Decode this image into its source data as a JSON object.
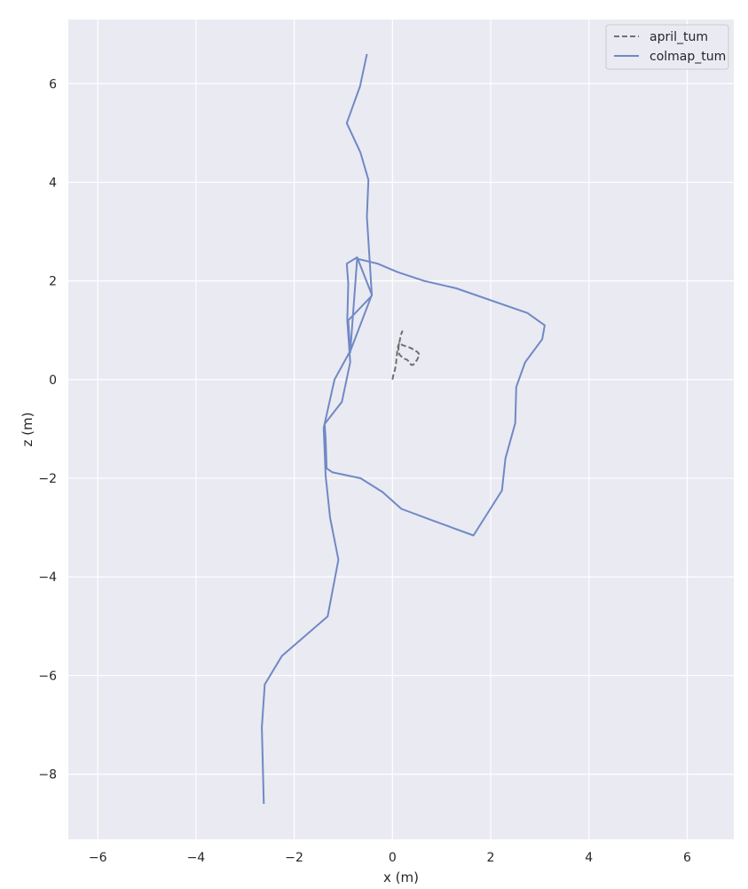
{
  "chart_data": {
    "type": "line",
    "xlabel": "x (m)",
    "ylabel": "z (m)",
    "xlim": [
      -6.6,
      6.95
    ],
    "ylim": [
      -9.32,
      7.3
    ],
    "xticks": [
      -6,
      -4,
      -2,
      0,
      2,
      4,
      6
    ],
    "yticks": [
      -8,
      -6,
      -4,
      -2,
      0,
      2,
      4,
      6
    ],
    "grid": true,
    "legend_position": "top-right",
    "series": [
      {
        "name": "april_tum",
        "color": "#707070",
        "dash": "dashed",
        "x": [
          0.0,
          0.02,
          0.05,
          0.07,
          0.08,
          0.09,
          0.1,
          0.12,
          0.15,
          0.18,
          0.2,
          0.35,
          0.45,
          0.52,
          0.55,
          0.5,
          0.42,
          0.38,
          0.35,
          0.3,
          0.25,
          0.2,
          0.15,
          0.12,
          0.12,
          0.13,
          0.15,
          0.17,
          0.2,
          0.18
        ],
        "y": [
          0.0,
          0.1,
          0.2,
          0.3,
          0.4,
          0.5,
          0.6,
          0.7,
          0.75,
          0.72,
          0.7,
          0.65,
          0.6,
          0.55,
          0.5,
          0.4,
          0.3,
          0.3,
          0.35,
          0.4,
          0.42,
          0.45,
          0.5,
          0.55,
          0.6,
          0.7,
          0.8,
          0.9,
          0.98,
          0.92
        ]
      },
      {
        "name": "colmap_tum",
        "color": "#7089c5",
        "dash": "solid",
        "x": [
          -0.52,
          -0.66,
          -0.93,
          -0.65,
          -0.49,
          -0.52,
          -0.42,
          -0.9,
          -0.86,
          -0.72,
          -0.3,
          0.1,
          0.65,
          1.3,
          2.75,
          3.1,
          3.05,
          2.7,
          2.52,
          2.5,
          2.3,
          2.23,
          1.65,
          0.8,
          0.18,
          -0.2,
          -0.65,
          -1.22,
          -1.34,
          -1.36,
          -1.38,
          -1.03,
          -0.86,
          -0.92,
          -0.9,
          -0.93,
          -0.72,
          -0.42,
          -0.85,
          -1.18,
          -1.4,
          -1.36,
          -1.27,
          -1.1,
          -1.32,
          -2.25,
          -2.6,
          -2.66,
          -2.62
        ],
        "y": [
          6.6,
          5.95,
          5.2,
          4.6,
          4.05,
          3.3,
          1.7,
          1.2,
          0.55,
          2.45,
          2.35,
          2.18,
          2.0,
          1.85,
          1.35,
          1.1,
          0.82,
          0.35,
          -0.15,
          -0.88,
          -1.6,
          -2.25,
          -3.16,
          -2.85,
          -2.62,
          -2.28,
          -2.0,
          -1.88,
          -1.8,
          -1.2,
          -0.9,
          -0.45,
          0.35,
          1.2,
          1.95,
          2.35,
          2.48,
          1.72,
          0.6,
          0.0,
          -0.98,
          -1.95,
          -2.8,
          -3.65,
          -4.8,
          -5.6,
          -6.18,
          -7.05,
          -8.6
        ]
      }
    ]
  }
}
